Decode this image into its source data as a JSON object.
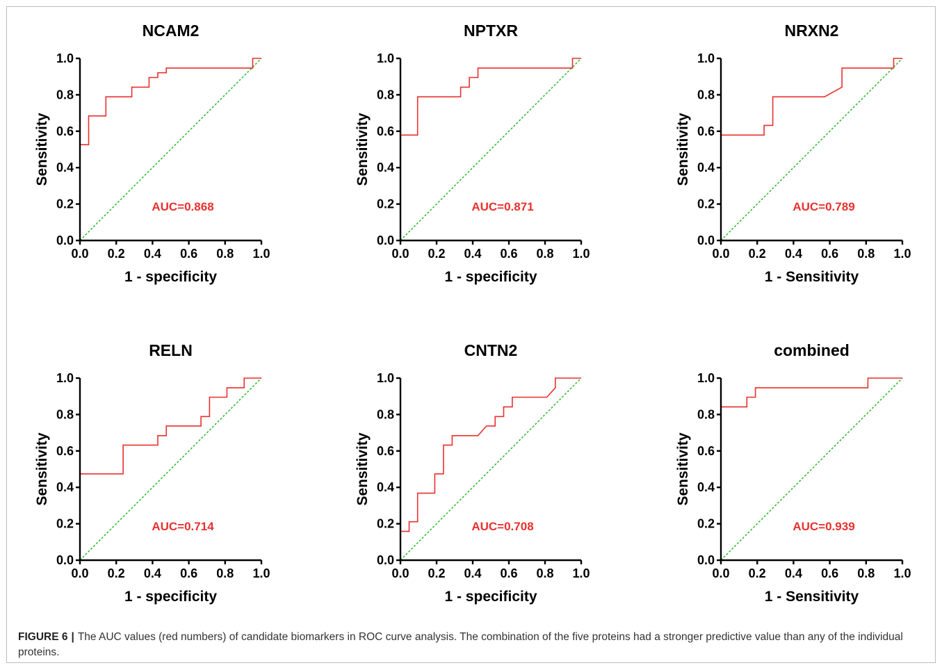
{
  "figure": {
    "caption_label": "FIGURE 6",
    "caption_separator": "|",
    "caption_text": "The AUC values (red numbers) of candidate biomarkers in ROC curve analysis. The combination of the five proteins had a stronger predictive value than any of the individual proteins."
  },
  "style": {
    "roc_color": "#e8302d",
    "reference_color": "#33bb33",
    "axis_color": "#000000",
    "auc_color": "#e8302d"
  },
  "chart_data": [
    {
      "type": "line",
      "title": "NCAM2",
      "xlabel": "1 - specificity",
      "ylabel": "Sensitivity",
      "auc_label": "AUC=0.868",
      "xlim": [
        0,
        1
      ],
      "ylim": [
        0,
        1
      ],
      "xticks": [
        "0.0",
        "0.2",
        "0.4",
        "0.6",
        "0.8",
        "1.0"
      ],
      "yticks": [
        "0.0",
        "0.2",
        "0.4",
        "0.6",
        "0.8",
        "1.0"
      ],
      "series": [
        {
          "x": [
            0,
            0,
            0.048,
            0.048,
            0.143,
            0.143,
            0.286,
            0.286,
            0.333,
            0.333,
            0.381,
            0.381,
            0.429,
            0.429,
            0.476,
            0.476,
            0.952,
            0.952,
            1.0
          ],
          "y": [
            0,
            0.526,
            0.526,
            0.684,
            0.684,
            0.789,
            0.789,
            0.842,
            0.842,
            0.842,
            0.842,
            0.895,
            0.895,
            0.921,
            0.921,
            0.947,
            0.947,
            1.0,
            1.0
          ]
        },
        {
          "x": [
            0,
            1
          ],
          "y": [
            0,
            1
          ]
        }
      ]
    },
    {
      "type": "line",
      "title": "NPTXR",
      "xlabel": "1 - specificity",
      "ylabel": "Sensitivity",
      "auc_label": "AUC=0.871",
      "xlim": [
        0,
        1
      ],
      "ylim": [
        0,
        1
      ],
      "xticks": [
        "0.0",
        "0.2",
        "0.4",
        "0.6",
        "0.8",
        "1.0"
      ],
      "yticks": [
        "0.0",
        "0.2",
        "0.4",
        "0.6",
        "0.8",
        "1.0"
      ],
      "series": [
        {
          "x": [
            0,
            0,
            0.095,
            0.095,
            0.333,
            0.333,
            0.381,
            0.381,
            0.429,
            0.429,
            0.952,
            0.952,
            1.0
          ],
          "y": [
            0,
            0.579,
            0.579,
            0.789,
            0.789,
            0.842,
            0.842,
            0.895,
            0.895,
            0.947,
            0.947,
            1.0,
            1.0
          ]
        },
        {
          "x": [
            0,
            1
          ],
          "y": [
            0,
            1
          ]
        }
      ]
    },
    {
      "type": "line",
      "title": "NRXN2",
      "xlabel": "1 - Sensitivity",
      "ylabel": "Sensitivity",
      "auc_label": "AUC=0.789",
      "xlim": [
        0,
        1
      ],
      "ylim": [
        0,
        1
      ],
      "xticks": [
        "0.0",
        "0.2",
        "0.4",
        "0.6",
        "0.8",
        "1.0"
      ],
      "yticks": [
        "0.0",
        "0.2",
        "0.4",
        "0.6",
        "0.8",
        "1.0"
      ],
      "series": [
        {
          "x": [
            0,
            0,
            0.238,
            0.238,
            0.286,
            0.286,
            0.571,
            0.667,
            0.667,
            0.952,
            0.952,
            1.0
          ],
          "y": [
            0,
            0.579,
            0.579,
            0.632,
            0.632,
            0.789,
            0.789,
            0.842,
            0.947,
            0.947,
            1.0,
            1.0
          ]
        },
        {
          "x": [
            0,
            1
          ],
          "y": [
            0,
            1
          ]
        }
      ]
    },
    {
      "type": "line",
      "title": "RELN",
      "xlabel": "1 - specificity",
      "ylabel": "Sensitivity",
      "auc_label": "AUC=0.714",
      "xlim": [
        0,
        1
      ],
      "ylim": [
        0,
        1
      ],
      "xticks": [
        "0.0",
        "0.2",
        "0.4",
        "0.6",
        "0.8",
        "1.0"
      ],
      "yticks": [
        "0.0",
        "0.2",
        "0.4",
        "0.6",
        "0.8",
        "1.0"
      ],
      "series": [
        {
          "x": [
            0,
            0,
            0.238,
            0.238,
            0.429,
            0.429,
            0.476,
            0.476,
            0.667,
            0.667,
            0.714,
            0.714,
            0.81,
            0.81,
            0.905,
            0.905,
            1.0
          ],
          "y": [
            0,
            0.474,
            0.474,
            0.632,
            0.632,
            0.684,
            0.684,
            0.737,
            0.737,
            0.789,
            0.789,
            0.895,
            0.895,
            0.947,
            0.947,
            1.0,
            1.0
          ]
        },
        {
          "x": [
            0,
            1
          ],
          "y": [
            0,
            1
          ]
        }
      ]
    },
    {
      "type": "line",
      "title": "CNTN2",
      "xlabel": "1 - specificity",
      "ylabel": "Sensitivity",
      "auc_label": "AUC=0.708",
      "xlim": [
        0,
        1
      ],
      "ylim": [
        0,
        1
      ],
      "xticks": [
        "0.0",
        "0.2",
        "0.4",
        "0.6",
        "0.8",
        "1.0"
      ],
      "yticks": [
        "0.0",
        "0.2",
        "0.4",
        "0.6",
        "0.8",
        "1.0"
      ],
      "series": [
        {
          "x": [
            0,
            0,
            0.048,
            0.048,
            0.095,
            0.095,
            0.19,
            0.19,
            0.238,
            0.238,
            0.286,
            0.286,
            0.429,
            0.476,
            0.476,
            0.524,
            0.524,
            0.571,
            0.571,
            0.619,
            0.619,
            0.81,
            0.857,
            0.857,
            1.0
          ],
          "y": [
            0,
            0.158,
            0.158,
            0.211,
            0.211,
            0.368,
            0.368,
            0.474,
            0.474,
            0.632,
            0.632,
            0.684,
            0.684,
            0.737,
            0.737,
            0.737,
            0.789,
            0.789,
            0.842,
            0.842,
            0.895,
            0.895,
            0.947,
            1.0,
            1.0
          ]
        },
        {
          "x": [
            0,
            1
          ],
          "y": [
            0,
            1
          ]
        }
      ]
    },
    {
      "type": "line",
      "title": "combined",
      "xlabel": "1 - Sensitivity",
      "ylabel": "Sensitivity",
      "auc_label": "AUC=0.939",
      "xlim": [
        0,
        1
      ],
      "ylim": [
        0,
        1
      ],
      "xticks": [
        "0.0",
        "0.2",
        "0.4",
        "0.6",
        "0.8",
        "1.0"
      ],
      "yticks": [
        "0.0",
        "0.2",
        "0.4",
        "0.6",
        "0.8",
        "1.0"
      ],
      "series": [
        {
          "x": [
            0,
            0,
            0.143,
            0.143,
            0.19,
            0.19,
            0.81,
            0.81,
            1.0
          ],
          "y": [
            0,
            0.842,
            0.842,
            0.895,
            0.895,
            0.947,
            0.947,
            1.0,
            1.0
          ]
        },
        {
          "x": [
            0,
            1
          ],
          "y": [
            0,
            1
          ]
        }
      ]
    }
  ]
}
